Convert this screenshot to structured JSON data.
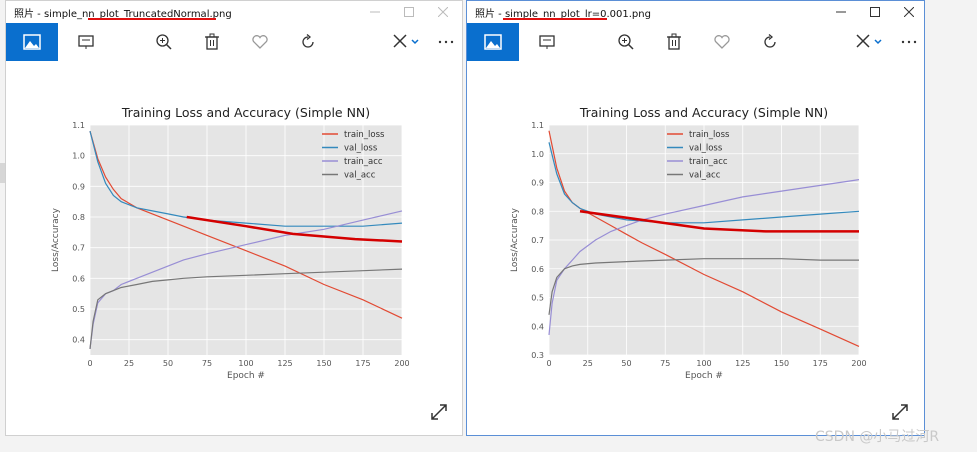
{
  "windows": [
    {
      "title": "照片 - simple_nn_plot_TruncatedNormal.png",
      "chart_data": {
        "type": "line",
        "title": "Training Loss and Accuracy (Simple NN)",
        "xlabel": "Epoch #",
        "ylabel": "Loss/Accuracy",
        "xlim": [
          0,
          200
        ],
        "ylim": [
          0.35,
          1.1
        ],
        "xticks": [
          0,
          25,
          50,
          75,
          100,
          125,
          150,
          175,
          200
        ],
        "yticks": [
          0.4,
          0.5,
          0.6,
          0.7,
          0.8,
          0.9,
          1.0,
          1.1
        ],
        "grid": true,
        "legend": "top-right",
        "series": [
          {
            "name": "train_loss",
            "color": "#e24a33",
            "x": [
              0,
              5,
              10,
              15,
              20,
              30,
              40,
              50,
              60,
              75,
              100,
              125,
              150,
              175,
              200
            ],
            "y": [
              1.08,
              0.99,
              0.93,
              0.89,
              0.86,
              0.83,
              0.81,
              0.79,
              0.77,
              0.74,
              0.69,
              0.64,
              0.58,
              0.53,
              0.47
            ]
          },
          {
            "name": "val_loss",
            "color": "#348abd",
            "x": [
              0,
              5,
              10,
              15,
              20,
              30,
              40,
              50,
              60,
              75,
              100,
              125,
              150,
              175,
              200
            ],
            "y": [
              1.08,
              0.98,
              0.91,
              0.87,
              0.85,
              0.83,
              0.82,
              0.81,
              0.8,
              0.79,
              0.78,
              0.77,
              0.77,
              0.77,
              0.78
            ]
          },
          {
            "name": "train_acc",
            "color": "#988ed5",
            "x": [
              0,
              2,
              5,
              10,
              15,
              20,
              30,
              40,
              50,
              60,
              75,
              100,
              125,
              150,
              175,
              200
            ],
            "y": [
              0.37,
              0.45,
              0.52,
              0.55,
              0.56,
              0.58,
              0.6,
              0.62,
              0.64,
              0.66,
              0.68,
              0.71,
              0.74,
              0.76,
              0.79,
              0.82
            ]
          },
          {
            "name": "val_acc",
            "color": "#777777",
            "x": [
              0,
              2,
              5,
              10,
              15,
              20,
              30,
              40,
              50,
              60,
              75,
              100,
              125,
              150,
              175,
              200
            ],
            "y": [
              0.37,
              0.46,
              0.53,
              0.55,
              0.56,
              0.57,
              0.58,
              0.59,
              0.595,
              0.6,
              0.605,
              0.61,
              0.615,
              0.62,
              0.625,
              0.63
            ]
          }
        ],
        "annotation": {
          "color": "#d40000",
          "x": [
            62,
            100,
            130,
            170,
            200
          ],
          "y": [
            0.8,
            0.77,
            0.745,
            0.728,
            0.72
          ]
        }
      }
    },
    {
      "title": "照片 - simple_nn_plot_lr=0.001.png",
      "chart_data": {
        "type": "line",
        "title": "Training Loss and Accuracy (Simple NN)",
        "xlabel": "Epoch #",
        "ylabel": "Loss/Accuracy",
        "xlim": [
          0,
          200
        ],
        "ylim": [
          0.3,
          1.1
        ],
        "xticks": [
          0,
          25,
          50,
          75,
          100,
          125,
          150,
          175,
          200
        ],
        "yticks": [
          0.3,
          0.4,
          0.5,
          0.6,
          0.7,
          0.8,
          0.9,
          1.0,
          1.1
        ],
        "grid": true,
        "legend": "top-center",
        "series": [
          {
            "name": "train_loss",
            "color": "#e24a33",
            "x": [
              0,
              5,
              10,
              15,
              20,
              30,
              40,
              50,
              60,
              75,
              100,
              125,
              150,
              175,
              200
            ],
            "y": [
              1.08,
              0.95,
              0.87,
              0.83,
              0.81,
              0.78,
              0.75,
              0.72,
              0.69,
              0.65,
              0.58,
              0.52,
              0.45,
              0.39,
              0.33
            ]
          },
          {
            "name": "val_loss",
            "color": "#348abd",
            "x": [
              0,
              5,
              10,
              15,
              20,
              30,
              40,
              50,
              75,
              100,
              125,
              150,
              175,
              200
            ],
            "y": [
              1.04,
              0.93,
              0.86,
              0.83,
              0.81,
              0.79,
              0.78,
              0.77,
              0.76,
              0.76,
              0.77,
              0.78,
              0.79,
              0.8
            ]
          },
          {
            "name": "train_acc",
            "color": "#988ed5",
            "x": [
              0,
              2,
              5,
              10,
              15,
              20,
              30,
              40,
              50,
              60,
              75,
              100,
              125,
              150,
              175,
              200
            ],
            "y": [
              0.37,
              0.48,
              0.56,
              0.6,
              0.63,
              0.66,
              0.7,
              0.73,
              0.75,
              0.77,
              0.79,
              0.82,
              0.85,
              0.87,
              0.89,
              0.91
            ]
          },
          {
            "name": "val_acc",
            "color": "#777777",
            "x": [
              0,
              2,
              5,
              10,
              15,
              20,
              30,
              50,
              75,
              100,
              125,
              150,
              175,
              200
            ],
            "y": [
              0.44,
              0.52,
              0.57,
              0.6,
              0.61,
              0.615,
              0.62,
              0.625,
              0.63,
              0.635,
              0.635,
              0.635,
              0.63,
              0.63
            ]
          }
        ],
        "annotation": {
          "color": "#d40000",
          "x": [
            20,
            60,
            100,
            140,
            200
          ],
          "y": [
            0.8,
            0.77,
            0.74,
            0.73,
            0.73
          ]
        }
      }
    }
  ],
  "watermark": "CSDN @小马过河R"
}
